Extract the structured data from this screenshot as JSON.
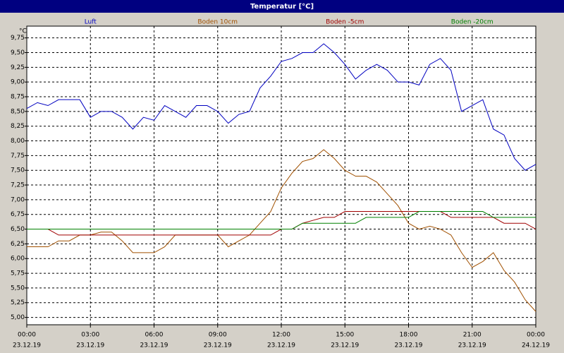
{
  "chart_data": {
    "type": "line",
    "title": "Temperatur [°C]",
    "y_unit": "°C",
    "x": [
      0,
      0.5,
      1,
      1.5,
      2,
      2.5,
      3,
      3.5,
      4,
      4.5,
      5,
      5.5,
      6,
      6.5,
      7,
      7.5,
      8,
      8.5,
      9,
      9.5,
      10,
      10.5,
      11,
      11.5,
      12,
      12.5,
      13,
      13.5,
      14,
      14.5,
      15,
      15.5,
      16,
      16.5,
      17,
      17.5,
      18,
      18.5,
      19,
      19.5,
      20,
      20.5,
      21,
      21.5,
      22,
      22.5,
      23,
      23.5,
      24
    ],
    "series": [
      {
        "name": "Luft",
        "color": "#0000c0",
        "values": [
          8.55,
          8.65,
          8.6,
          8.7,
          8.7,
          8.7,
          8.4,
          8.5,
          8.5,
          8.4,
          8.2,
          8.4,
          8.35,
          8.6,
          8.5,
          8.4,
          8.6,
          8.6,
          8.5,
          8.3,
          8.45,
          8.5,
          8.9,
          9.1,
          9.35,
          9.4,
          9.5,
          9.5,
          9.65,
          9.5,
          9.3,
          9.05,
          9.2,
          9.3,
          9.2,
          9.0,
          9.0,
          8.95,
          9.3,
          9.4,
          9.2,
          8.5,
          8.6,
          8.7,
          8.2,
          8.1,
          7.7,
          7.5,
          7.6
        ]
      },
      {
        "name": "Boden 10cm",
        "color": "#a05000",
        "values": [
          6.2,
          6.2,
          6.2,
          6.3,
          6.3,
          6.4,
          6.4,
          6.45,
          6.45,
          6.3,
          6.1,
          6.1,
          6.1,
          6.2,
          6.4,
          6.4,
          6.4,
          6.4,
          6.4,
          6.2,
          6.3,
          6.4,
          6.6,
          6.8,
          7.2,
          7.45,
          7.65,
          7.7,
          7.85,
          7.7,
          7.5,
          7.4,
          7.4,
          7.3,
          7.1,
          6.9,
          6.6,
          6.5,
          6.55,
          6.5,
          6.4,
          6.1,
          5.85,
          5.95,
          6.1,
          5.8,
          5.6,
          5.3,
          5.1
        ]
      },
      {
        "name": "Boden -5cm",
        "color": "#a00000",
        "values": [
          6.5,
          6.5,
          6.5,
          6.4,
          6.4,
          6.4,
          6.4,
          6.4,
          6.4,
          6.4,
          6.4,
          6.4,
          6.4,
          6.4,
          6.4,
          6.4,
          6.4,
          6.4,
          6.4,
          6.4,
          6.4,
          6.4,
          6.4,
          6.4,
          6.5,
          6.5,
          6.6,
          6.65,
          6.7,
          6.7,
          6.8,
          6.8,
          6.8,
          6.8,
          6.8,
          6.8,
          6.8,
          6.8,
          6.8,
          6.8,
          6.7,
          6.7,
          6.7,
          6.7,
          6.7,
          6.6,
          6.6,
          6.6,
          6.5
        ]
      },
      {
        "name": "Boden -20cm",
        "color": "#008000",
        "values": [
          6.5,
          6.5,
          6.5,
          6.5,
          6.5,
          6.5,
          6.5,
          6.5,
          6.5,
          6.5,
          6.5,
          6.5,
          6.5,
          6.5,
          6.5,
          6.5,
          6.5,
          6.5,
          6.5,
          6.5,
          6.5,
          6.5,
          6.5,
          6.5,
          6.5,
          6.5,
          6.6,
          6.6,
          6.6,
          6.6,
          6.6,
          6.6,
          6.7,
          6.7,
          6.7,
          6.7,
          6.7,
          6.8,
          6.8,
          6.8,
          6.8,
          6.8,
          6.8,
          6.8,
          6.7,
          6.7,
          6.7,
          6.7,
          6.7
        ]
      }
    ],
    "xlim": [
      0,
      24
    ],
    "xticks": [
      {
        "value": 0,
        "label": "00:00",
        "date": "23.12.19"
      },
      {
        "value": 3,
        "label": "03:00",
        "date": "23.12.19"
      },
      {
        "value": 6,
        "label": "06:00",
        "date": "23.12.19"
      },
      {
        "value": 9,
        "label": "09:00",
        "date": "23.12.19"
      },
      {
        "value": 12,
        "label": "12:00",
        "date": "23.12.19"
      },
      {
        "value": 15,
        "label": "15:00",
        "date": "23.12.19"
      },
      {
        "value": 18,
        "label": "18:00",
        "date": "23.12.19"
      },
      {
        "value": 21,
        "label": "21:00",
        "date": "23.12.19"
      },
      {
        "value": 24,
        "label": "00:00",
        "date": "24.12.19"
      }
    ],
    "ylim": [
      4.875,
      9.95
    ],
    "yticks": [
      {
        "value": 5,
        "label": "5,00"
      },
      {
        "value": 5.25,
        "label": "5,25"
      },
      {
        "value": 5.5,
        "label": "5,50"
      },
      {
        "value": 5.75,
        "label": "5,75"
      },
      {
        "value": 6,
        "label": "6,00"
      },
      {
        "value": 6.25,
        "label": "6,25"
      },
      {
        "value": 6.5,
        "label": "6,50"
      },
      {
        "value": 6.75,
        "label": "6,75"
      },
      {
        "value": 7,
        "label": "7,00"
      },
      {
        "value": 7.25,
        "label": "7,25"
      },
      {
        "value": 7.5,
        "label": "7,50"
      },
      {
        "value": 7.75,
        "label": "7,75"
      },
      {
        "value": 8,
        "label": "8,00"
      },
      {
        "value": 8.25,
        "label": "8,25"
      },
      {
        "value": 8.5,
        "label": "8,50"
      },
      {
        "value": 8.75,
        "label": "8,75"
      },
      {
        "value": 9,
        "label": "9,00"
      },
      {
        "value": 9.25,
        "label": "9,25"
      },
      {
        "value": 9.5,
        "label": "9,50"
      },
      {
        "value": 9.75,
        "label": "9,75"
      }
    ],
    "grid": true
  }
}
